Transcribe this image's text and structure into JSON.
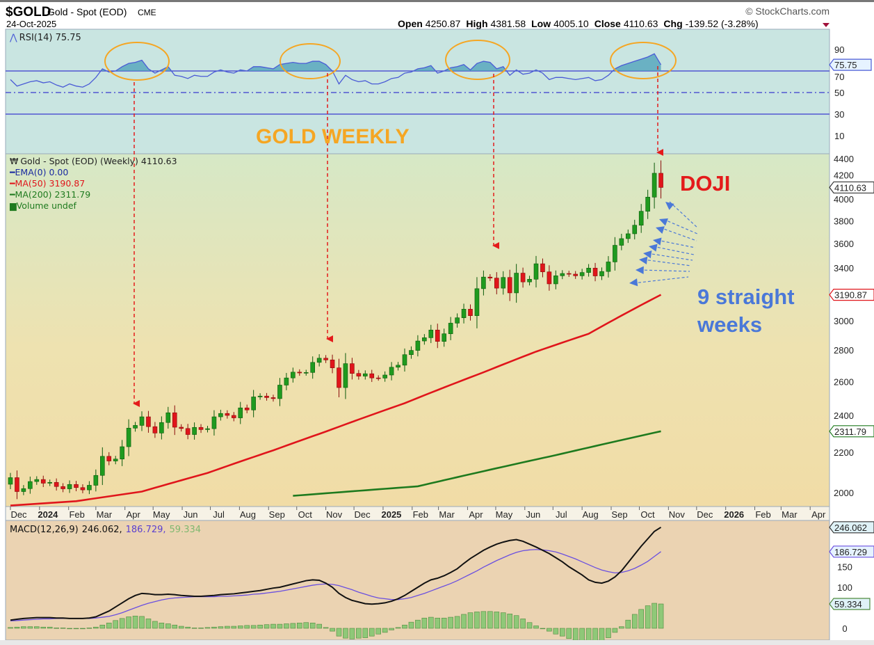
{
  "header": {
    "symbol": "$GOLD",
    "name": "Gold - Spot (EOD)",
    "exchange": "CME",
    "date": "24-Oct-2025",
    "copyright": "© StockCharts.com",
    "open_label": "Open",
    "open": "4250.87",
    "high_label": "High",
    "high": "4381.58",
    "low_label": "Low",
    "low": "4005.10",
    "close_label": "Close",
    "close": "4110.63",
    "chg_label": "Chg",
    "chg": "-139.52 (-3.28%)"
  },
  "rsi_panel": {
    "legend": "RSI(14) 75.75",
    "value_label": "75.75",
    "ticks": [
      "90",
      "70",
      "50",
      "30",
      "10"
    ]
  },
  "price_panel": {
    "legend": "Gold - Spot (EOD) (Weekly) 4110.63",
    "ema": "EMA(0) 0.00",
    "ma50": "MA(50) 3190.87",
    "ma200": "MA(200) 2311.79",
    "volume": "Volume undef",
    "ticks": [
      "4400",
      "4200",
      "4000",
      "3800",
      "3600",
      "3400",
      "3000",
      "2800",
      "2600",
      "2400",
      "2200",
      "2000"
    ],
    "last_label": "4110.63",
    "ma50_label": "3190.87",
    "ma200_label": "2311.79"
  },
  "macd_panel": {
    "legend_prefix": "MACD(12,26,9)",
    "macd": "246.062,",
    "signal": "186.729,",
    "hist": "59.334",
    "macd_label": "246.062",
    "signal_label": "186.729",
    "hist_label": "59.334",
    "ticks": [
      "150",
      "100",
      "0"
    ]
  },
  "annotations": {
    "title": "GOLD WEEKLY",
    "doji": "DOJI",
    "streak_line1": "9 straight",
    "streak_line2": "weeks"
  },
  "colors": {
    "up": "#1f9a1f",
    "down": "#e0151b",
    "ma50": "#e0151b",
    "ma200": "#1e7a1e",
    "rsi": "#4a5bd6",
    "annotation_orange": "#f5a623",
    "annotation_red": "#e41b1b",
    "annotation_blue": "#4a78d8"
  },
  "chart_data": {
    "type": "candlestick",
    "interval": "weekly",
    "first_week": "2023-12-01",
    "price_scale": "log",
    "ylim": [
      1950,
      4450
    ],
    "closes": [
      2072,
      2005,
      2019,
      2053,
      2063,
      2045,
      2049,
      2029,
      2018,
      2039,
      2024,
      2013,
      2035,
      2083,
      2179,
      2155,
      2165,
      2229,
      2329,
      2344,
      2392,
      2337,
      2302,
      2360,
      2415,
      2334,
      2327,
      2294,
      2333,
      2321,
      2326,
      2392,
      2411,
      2400,
      2386,
      2443,
      2431,
      2507,
      2512,
      2503,
      2497,
      2578,
      2622,
      2658,
      2653,
      2656,
      2720,
      2747,
      2736,
      2685,
      2563,
      2712,
      2650,
      2633,
      2648,
      2622,
      2621,
      2640,
      2689,
      2702,
      2770,
      2798,
      2861,
      2883,
      2936,
      2858,
      2910,
      2984,
      3022,
      3084,
      3037,
      3237,
      3327,
      3319,
      3241,
      3324,
      3205,
      3358,
      3289,
      3310,
      3433,
      3368,
      3274,
      3337,
      3355,
      3350,
      3337,
      3363,
      3398,
      3336,
      3371,
      3448,
      3586,
      3643,
      3685,
      3760,
      3886,
      4018,
      4251,
      4110.63
    ],
    "last_bar": {
      "open": 4250.87,
      "high": 4381.58,
      "low": 4005.1,
      "close": 4110.63
    },
    "ma50": {
      "weeks": [
        0,
        10,
        20,
        30,
        40,
        48,
        60,
        72,
        80,
        88,
        99
      ],
      "values": [
        1940,
        1960,
        2005,
        2095,
        2210,
        2310,
        2470,
        2657,
        2790,
        2910,
        3190.87
      ]
    },
    "ma200": {
      "weeks": [
        43,
        62,
        83,
        99
      ],
      "values": [
        1985,
        2030,
        2185,
        2311.79
      ]
    },
    "rsi": [
      62,
      56,
      58,
      60,
      61,
      59,
      60,
      57,
      55,
      58,
      56,
      55,
      58,
      64,
      72,
      69,
      70,
      74,
      77,
      78,
      80,
      72,
      68,
      71,
      74,
      66,
      65,
      63,
      66,
      65,
      65,
      69,
      71,
      69,
      68,
      71,
      70,
      74,
      74,
      73,
      72,
      76,
      77,
      78,
      77,
      77,
      79,
      79,
      76,
      70,
      58,
      66,
      62,
      60,
      61,
      58,
      58,
      60,
      63,
      64,
      68,
      69,
      72,
      73,
      75,
      68,
      70,
      73,
      74,
      76,
      71,
      77,
      79,
      78,
      72,
      74,
      66,
      71,
      67,
      68,
      71,
      68,
      62,
      64,
      64,
      63,
      62,
      63,
      64,
      61,
      62,
      66,
      72,
      75,
      77,
      79,
      81,
      83,
      86,
      75.75
    ],
    "macd": [
      20,
      22,
      24,
      25,
      26,
      26,
      26,
      25,
      25,
      24,
      24,
      24,
      25,
      28,
      35,
      42,
      52,
      62,
      72,
      80,
      85,
      84,
      82,
      82,
      83,
      82,
      80,
      79,
      78,
      78,
      79,
      80,
      82,
      83,
      84,
      86,
      88,
      90,
      92,
      95,
      98,
      100,
      104,
      108,
      112,
      116,
      118,
      117,
      110,
      100,
      85,
      75,
      68,
      64,
      60,
      59,
      60,
      62,
      66,
      72,
      80,
      90,
      100,
      110,
      118,
      122,
      128,
      136,
      145,
      158,
      170,
      180,
      190,
      198,
      205,
      210,
      214,
      216,
      212,
      205,
      198,
      190,
      182,
      172,
      162,
      150,
      140,
      130,
      118,
      112,
      110,
      115,
      125,
      140,
      160,
      180,
      200,
      218,
      236,
      246.062
    ],
    "signal": [
      18,
      19,
      20,
      21,
      22,
      23,
      23,
      24,
      24,
      24,
      24,
      24,
      24,
      25,
      27,
      29,
      33,
      38,
      44,
      50,
      56,
      61,
      65,
      69,
      72,
      74,
      75,
      76,
      77,
      77,
      77,
      77,
      78,
      78,
      79,
      80,
      81,
      83,
      84,
      86,
      88,
      90,
      93,
      96,
      99,
      102,
      105,
      107,
      108,
      107,
      104,
      99,
      94,
      88,
      83,
      78,
      74,
      72,
      70,
      70,
      72,
      75,
      80,
      85,
      91,
      97,
      103,
      109,
      116,
      124,
      132,
      140,
      149,
      157,
      165,
      172,
      179,
      185,
      189,
      191,
      192,
      191,
      189,
      186,
      181,
      175,
      169,
      162,
      155,
      148,
      142,
      138,
      135,
      136,
      140,
      146,
      154,
      163,
      175,
      186.729
    ],
    "rsi_levels": [
      70,
      50,
      30
    ],
    "x_ticks": [
      {
        "label": "Dec",
        "date": "2023-12-01"
      },
      {
        "label": "2024",
        "date": "2024-01-01",
        "year": true
      },
      {
        "label": "Feb",
        "date": "2024-02-01"
      },
      {
        "label": "Mar",
        "date": "2024-03-01"
      },
      {
        "label": "Apr",
        "date": "2024-04-01"
      },
      {
        "label": "May",
        "date": "2024-05-01"
      },
      {
        "label": "Jun",
        "date": "2024-06-01"
      },
      {
        "label": "Jul",
        "date": "2024-07-01"
      },
      {
        "label": "Aug",
        "date": "2024-08-01"
      },
      {
        "label": "Sep",
        "date": "2024-09-01"
      },
      {
        "label": "Oct",
        "date": "2024-10-01"
      },
      {
        "label": "Nov",
        "date": "2024-11-01"
      },
      {
        "label": "Dec",
        "date": "2024-12-01"
      },
      {
        "label": "2025",
        "date": "2025-01-01",
        "year": true
      },
      {
        "label": "Feb",
        "date": "2025-02-01"
      },
      {
        "label": "Mar",
        "date": "2025-03-01"
      },
      {
        "label": "Apr",
        "date": "2025-04-01"
      },
      {
        "label": "May",
        "date": "2025-05-01"
      },
      {
        "label": "Jun",
        "date": "2025-06-01"
      },
      {
        "label": "Jul",
        "date": "2025-07-01"
      },
      {
        "label": "Aug",
        "date": "2025-08-01"
      },
      {
        "label": "Sep",
        "date": "2025-09-01"
      },
      {
        "label": "Oct",
        "date": "2025-10-01"
      },
      {
        "label": "Nov",
        "date": "2025-11-01"
      },
      {
        "label": "Dec",
        "date": "2025-12-01"
      },
      {
        "label": "2026",
        "date": "2026-01-01",
        "year": true
      },
      {
        "label": "Feb",
        "date": "2026-02-01"
      },
      {
        "label": "Mar",
        "date": "2026-03-01"
      },
      {
        "label": "Apr",
        "date": "2026-04-01"
      }
    ]
  }
}
